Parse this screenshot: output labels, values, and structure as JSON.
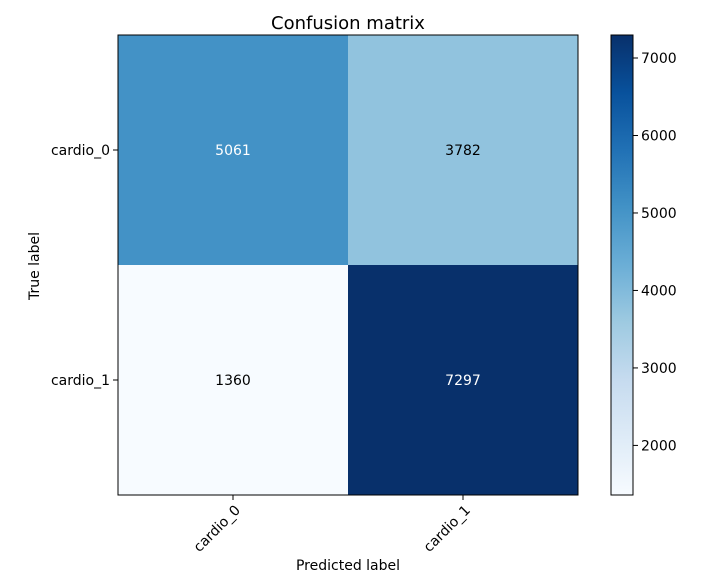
{
  "chart_data": {
    "type": "heatmap",
    "title": "Confusion matrix",
    "xlabel": "Predicted label",
    "ylabel": "True label",
    "x_categories": [
      "cardio_0",
      "cardio_1"
    ],
    "y_categories": [
      "cardio_0",
      "cardio_1"
    ],
    "values": [
      [
        5061,
        3782
      ],
      [
        1360,
        7297
      ]
    ],
    "colormap": "Blues",
    "colorbar": {
      "min": 1360,
      "max": 7297,
      "ticks": [
        2000,
        3000,
        4000,
        5000,
        6000,
        7000
      ]
    },
    "grid": false
  }
}
